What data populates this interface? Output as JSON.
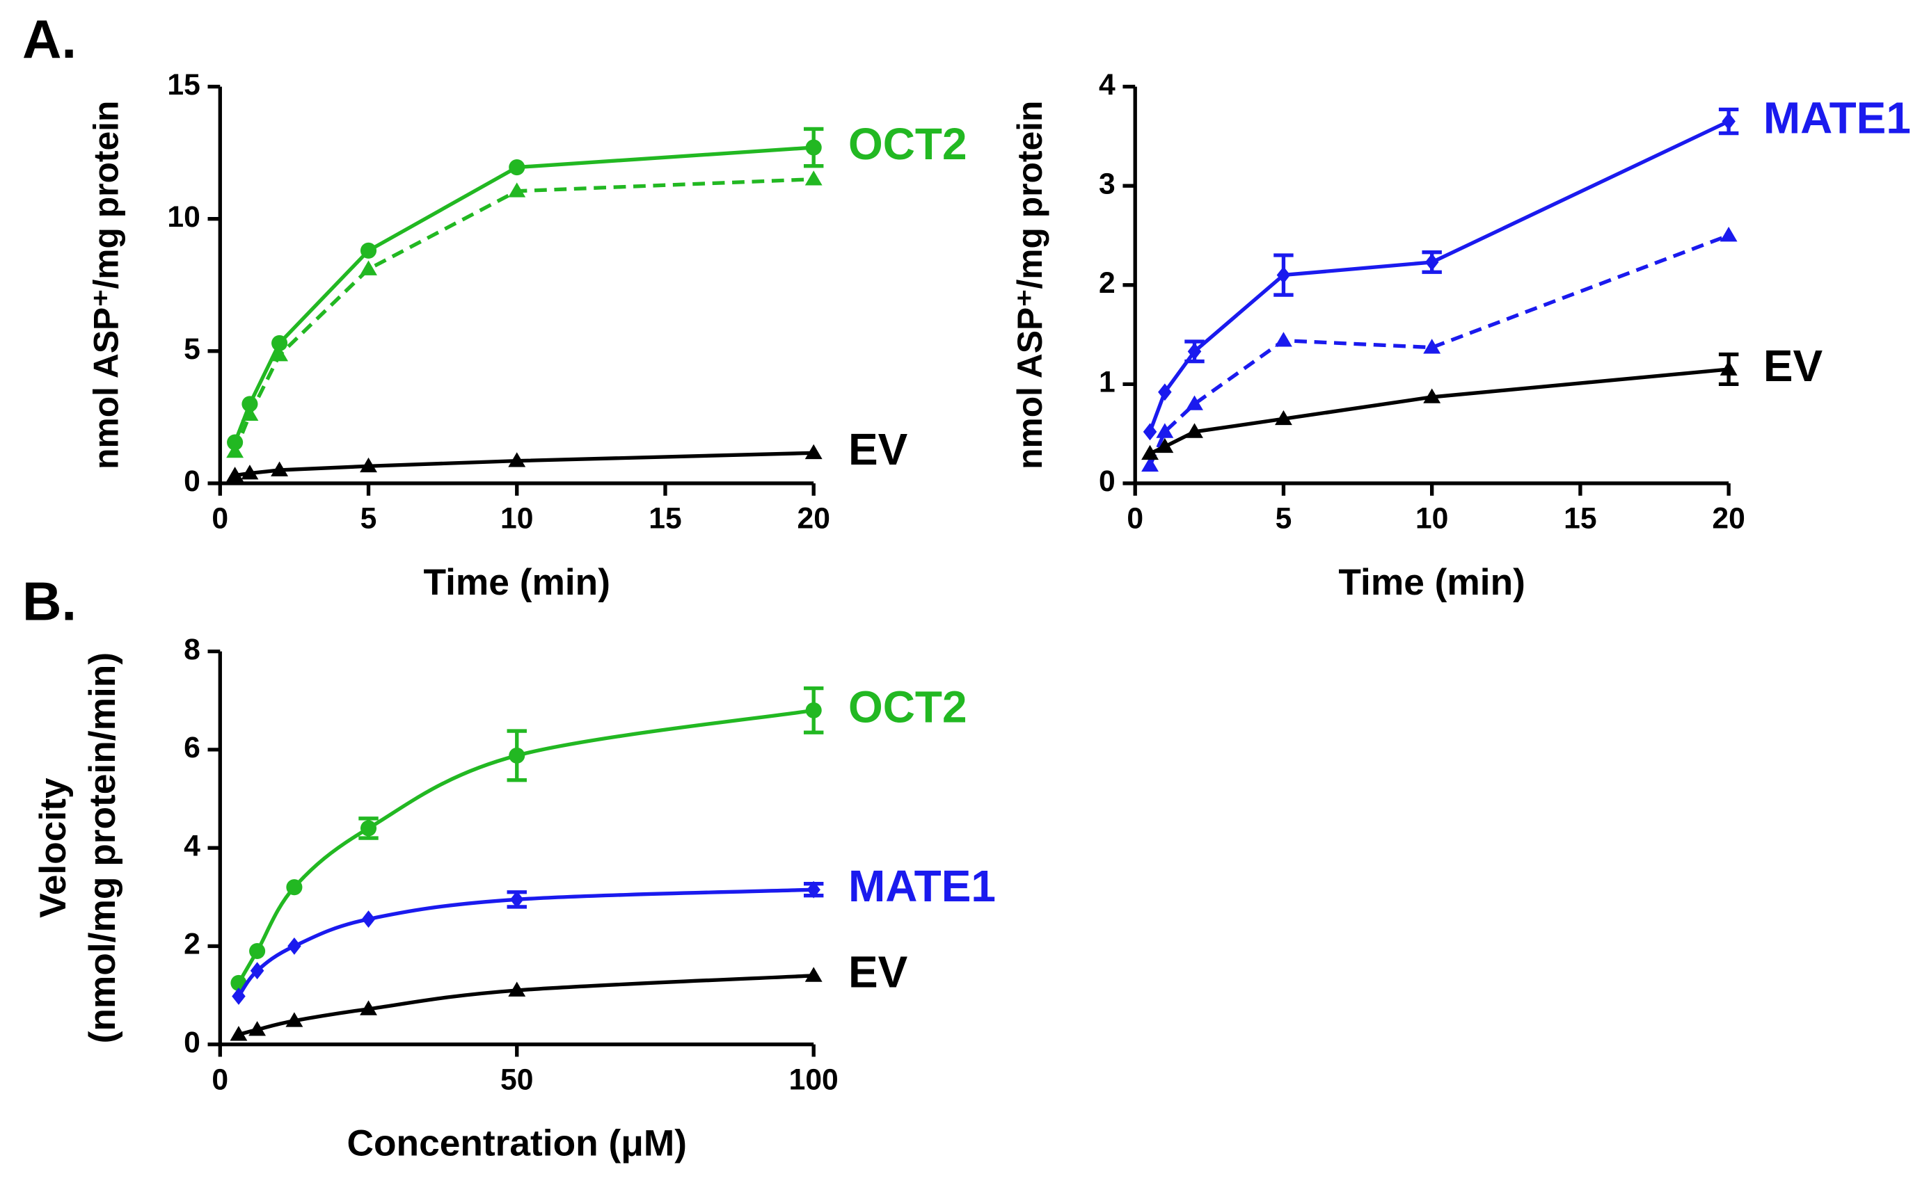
{
  "chart_data": [
    {
      "type": "line",
      "panel_label": "A.",
      "xlabel": "Time (min)",
      "ylabel": "nmol ASP⁺/mg protein",
      "x": [
        0.5,
        1,
        2,
        5,
        10,
        20
      ],
      "xlim": [
        0,
        20
      ],
      "xticks": [
        0,
        5,
        10,
        15,
        20
      ],
      "ylim": [
        0,
        15
      ],
      "yticks": [
        0,
        5,
        10,
        15
      ],
      "series": [
        {
          "name": "OCT2",
          "color": "#22b822",
          "marker": "circle",
          "dashed": false,
          "values": [
            1.55,
            3.0,
            5.3,
            8.8,
            11.95,
            12.7
          ],
          "errors": [
            null,
            null,
            null,
            null,
            null,
            0.7
          ]
        },
        {
          "color": "#22b822",
          "marker": "triangle",
          "dashed": true,
          "values": [
            1.2,
            2.6,
            4.85,
            8.1,
            11.05,
            11.5
          ]
        },
        {
          "name": "EV",
          "color": "#000000",
          "marker": "triangle",
          "dashed": false,
          "values": [
            0.3,
            0.38,
            0.5,
            0.65,
            0.85,
            1.15
          ]
        }
      ]
    },
    {
      "type": "line",
      "xlabel": "Time (min)",
      "ylabel": "nmol ASP⁺/mg protein",
      "x": [
        0.5,
        1,
        2,
        5,
        10,
        20
      ],
      "xlim": [
        0,
        20
      ],
      "xticks": [
        0,
        5,
        10,
        15,
        20
      ],
      "ylim": [
        0,
        4
      ],
      "yticks": [
        0,
        1,
        2,
        3,
        4
      ],
      "series": [
        {
          "name": "MATE1",
          "color": "#1a1aee",
          "marker": "diamond",
          "dashed": false,
          "values": [
            0.52,
            0.92,
            1.33,
            2.1,
            2.23,
            3.65
          ],
          "errors": [
            null,
            null,
            0.1,
            0.2,
            0.1,
            0.12
          ]
        },
        {
          "color": "#1a1aee",
          "marker": "triangle",
          "dashed": true,
          "values": [
            0.18,
            0.52,
            0.8,
            1.44,
            1.37,
            2.5
          ]
        },
        {
          "name": "EV",
          "color": "#000000",
          "marker": "triangle",
          "dashed": false,
          "values": [
            0.3,
            0.37,
            0.52,
            0.65,
            0.87,
            1.15
          ],
          "errors": [
            null,
            null,
            null,
            null,
            null,
            0.15
          ]
        }
      ]
    },
    {
      "type": "curve",
      "panel_label": "B.",
      "xlabel": "Concentration (μM)",
      "ylabel": [
        "Velocity",
        "(nmol/mg protein/min)"
      ],
      "x": [
        3.125,
        6.25,
        12.5,
        25,
        50,
        100
      ],
      "xlim": [
        0,
        100
      ],
      "xticks": [
        0,
        50,
        100
      ],
      "ylim": [
        0,
        8
      ],
      "yticks": [
        0,
        2,
        4,
        6,
        8
      ],
      "series": [
        {
          "name": "OCT2",
          "color": "#22b822",
          "marker": "circle",
          "dashed": false,
          "values": [
            1.25,
            1.9,
            3.2,
            4.4,
            5.88,
            6.8
          ],
          "errors": [
            null,
            null,
            null,
            0.2,
            0.5,
            0.45
          ]
        },
        {
          "name": "MATE1",
          "color": "#1a1aee",
          "marker": "diamond",
          "dashed": false,
          "values": [
            0.98,
            1.5,
            2.0,
            2.55,
            2.95,
            3.15
          ],
          "errors": [
            null,
            null,
            null,
            null,
            0.15,
            0.12
          ]
        },
        {
          "name": "EV",
          "color": "#000000",
          "marker": "triangle",
          "dashed": false,
          "values": [
            0.2,
            0.3,
            0.48,
            0.72,
            1.1,
            1.4
          ]
        }
      ]
    }
  ]
}
